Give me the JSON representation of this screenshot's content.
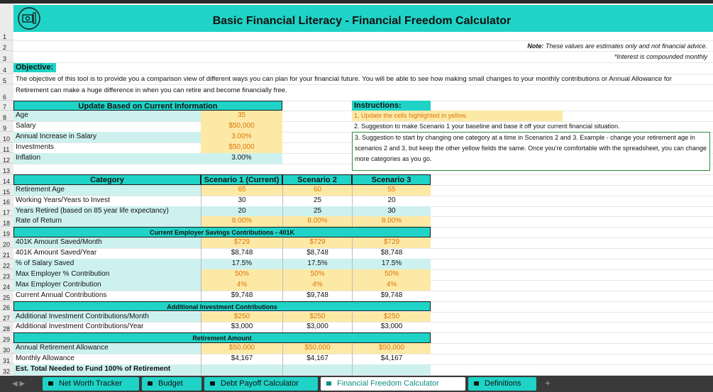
{
  "header": {
    "title": "Basic Financial Literacy - Financial Freedom Calculator",
    "note_label": "Note:",
    "note": "These values are estimates only and not financial advice.",
    "interest_note": "*Interest is compounded monthly"
  },
  "row_numbers": [
    1,
    2,
    3,
    4,
    5,
    6,
    7,
    8,
    9,
    10,
    11,
    12,
    13,
    14,
    15,
    16,
    17,
    18,
    19,
    20,
    21,
    22,
    23,
    24,
    25,
    26,
    27,
    28,
    29,
    30,
    31,
    32
  ],
  "objective": {
    "label": "Objective:",
    "text": "The objective of this tool is to provide you a comparison view of different ways you can plan for your financial future. You will be able to see how making small changes to your monthly contributions or Annual Allowance for Retirement can make a huge difference in when you can retire and become financially free."
  },
  "current_info": {
    "title": "Update Based on Current Information",
    "rows": [
      {
        "label": "Age",
        "value": "35"
      },
      {
        "label": "Salary",
        "value": "$50,000"
      },
      {
        "label": "Annual Increase in Salary",
        "value": "3.00%"
      },
      {
        "label": "Investments",
        "value": "$50,000"
      },
      {
        "label": "Inflation",
        "value": "3.00%"
      }
    ]
  },
  "instructions": {
    "title": "Instructions:",
    "items": [
      "1. Update the cells highlighted in yellow.",
      "2. Suggestion to make Scenario 1 your baseline and base it off your current financial situation.",
      "3. Suggestion to start by changing one category at a time in Scenarios 2 and 3. Example - change your retirement age in scenarios 2 and 3, but keep the other yellow fields the same. Once you're comfortable with the spreadsheet, you can change more categories as you go."
    ]
  },
  "scenarios": {
    "headers": [
      "Category",
      "Scenario 1 (Current)",
      "Scenario 2",
      "Scenario 3"
    ],
    "rows": [
      {
        "label": "Retirement Age",
        "values": [
          "65",
          "60",
          "55"
        ]
      },
      {
        "label": "Working Years/Years to Invest",
        "values": [
          "30",
          "25",
          "20"
        ]
      },
      {
        "label": "Years Retired (based on 85 year life expectancy)",
        "values": [
          "20",
          "25",
          "30"
        ]
      },
      {
        "label": "Rate of Return",
        "values": [
          "8.00%",
          "8.00%",
          "8.00%"
        ]
      },
      {
        "section": "Current Employer Savings Contributions - 401K"
      },
      {
        "label": "401K Amount Saved/Month",
        "values": [
          "$729",
          "$729",
          "$729"
        ]
      },
      {
        "label": "401K Amount Saved/Year",
        "values": [
          "$8,748",
          "$8,748",
          "$8,748"
        ]
      },
      {
        "label": "% of Salary Saved",
        "values": [
          "17.5%",
          "17.5%",
          "17.5%"
        ]
      },
      {
        "label": "Max Employer % Contribution",
        "values": [
          "50%",
          "50%",
          "50%"
        ]
      },
      {
        "label": "Max Employer Contribution",
        "values": [
          "4%",
          "4%",
          "4%"
        ]
      },
      {
        "label": "Current Annual Contributions",
        "values": [
          "$9,748",
          "$9,748",
          "$9,748"
        ]
      },
      {
        "section": "Additional Investment Contributions"
      },
      {
        "label": "Additional Investment Contributions/Month",
        "values": [
          "$250",
          "$250",
          "$250"
        ]
      },
      {
        "label": "Additional Investment Contributions/Year",
        "values": [
          "$3,000",
          "$3,000",
          "$3,000"
        ]
      },
      {
        "section": "Retirement Amount"
      },
      {
        "label": "Annual Retirement Allowance",
        "values": [
          "$50,000",
          "$50,000",
          "$50,000"
        ]
      },
      {
        "label": "Monthly Allowance",
        "values": [
          "$4,167",
          "$4,167",
          "$4,167"
        ]
      },
      {
        "label": "Est. Total Needed to Fund 100% of Retirement",
        "values": []
      }
    ]
  },
  "tabs": [
    "Net Worth Tracker",
    "Budget",
    "Debt Payoff Calculator",
    "Financial Freedom Calculator",
    "Definitions"
  ]
}
